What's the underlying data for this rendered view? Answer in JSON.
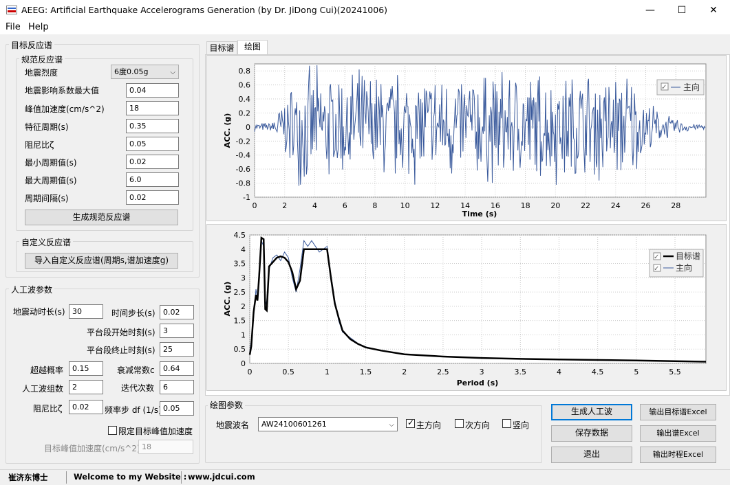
{
  "window": {
    "title": "AEEG: Artificial Earthquake Accelerograms Generation (by Dr. JiDong Cui)(20241006)",
    "min": "—",
    "max": "☐",
    "close": "✕"
  },
  "menu": [
    "File",
    "Help"
  ],
  "target": {
    "title": "目标反应谱",
    "code": {
      "title": "规范反应谱",
      "intensity_label": "地震烈度",
      "intensity_value": "6度0.05g",
      "amax_label": "地震影响系数最大值",
      "amax": "0.04",
      "pga_label": "峰值加速度(cm/s^2)",
      "pga": "18",
      "tg_label": "特征周期(s)",
      "tg": "0.35",
      "damp_label": "阻尼比ζ",
      "damp": "0.05",
      "tmin_label": "最小周期值(s)",
      "tmin": "0.02",
      "tmax_label": "最大周期值(s)",
      "tmax": "6.0",
      "dt_label": "周期间隔(s)",
      "dt": "0.02",
      "gen_button": "生成规范反应谱"
    },
    "custom": {
      "title": "自定义反应谱",
      "import_button": "导入自定义反应谱(周期s,谱加速度g)"
    }
  },
  "wave": {
    "title": "人工波参数",
    "dur_label": "地震动时长(s)",
    "dur": "30",
    "step_label": "时间步长(s)",
    "step": "0.02",
    "t1_label": "平台段开始时刻(s)",
    "t1": "3",
    "t2_label": "平台段终止时刻(s)",
    "t2": "25",
    "exceed_label": "超越概率",
    "exceed": "0.15",
    "decay_label": "衰减常数c",
    "decay": "0.64",
    "count_label": "人工波组数",
    "count": "2",
    "iter_label": "迭代次数",
    "iter": "6",
    "damp_label": "阻尼比ζ",
    "damp": "0.02",
    "df_label": "频率步 df (1/s)",
    "df": "0.05",
    "limit_label": "限定目标峰值加速度",
    "target_pga_label": "目标峰值加速度(cm/s^2)",
    "target_pga": "18"
  },
  "tabs": [
    "目标谱",
    "绘图"
  ],
  "chart1": {
    "legend": "主向",
    "ylabel": "ACC. (g)",
    "xlabel": "Time (s)",
    "yticks": [
      "0.8",
      "0.6",
      "0.4",
      "0.2",
      "0",
      "-0.2",
      "-0.4",
      "-0.6",
      "-0.8",
      "-1"
    ],
    "xticks": [
      "0",
      "2",
      "4",
      "6",
      "8",
      "10",
      "12",
      "14",
      "16",
      "18",
      "20",
      "22",
      "24",
      "26",
      "28"
    ]
  },
  "chart2": {
    "legend1": "目标谱",
    "legend2": "主向",
    "ylabel": "ACC. (g)",
    "xlabel": "Period (s)",
    "yticks": [
      "4.5",
      "4",
      "3.5",
      "3",
      "2.5",
      "2",
      "1.5",
      "1",
      "0.5",
      "0"
    ],
    "xticks": [
      "0",
      "0.5",
      "1",
      "1.5",
      "2",
      "2.5",
      "3",
      "3.5",
      "4",
      "4.5",
      "5",
      "5.5"
    ]
  },
  "plot": {
    "title": "绘图参数",
    "name_label": "地震波名",
    "name_value": "AW24100601261",
    "dir1": "主方向",
    "dir2": "次方向",
    "dir3": "竖向"
  },
  "actions": {
    "gen": "生成人工波",
    "save": "保存数据",
    "exit": "退出",
    "excel_target": "输出目标谱Excel",
    "excel_spec": "输出谱Excel",
    "excel_time": "输出时程Excel"
  },
  "status": {
    "author": "崔济东博士",
    "welcome": "Welcome to my Website :",
    "site": "www.jdcui.com"
  },
  "chart_data": [
    {
      "type": "line",
      "xlabel": "Time (s)",
      "ylabel": "ACC. (g)",
      "xlim": [
        0,
        30
      ],
      "ylim": [
        -1,
        0.9
      ],
      "series": [
        {
          "name": "主向",
          "note_envelope": [
            0,
            3,
            25,
            30
          ]
        }
      ]
    },
    {
      "type": "line",
      "xlabel": "Period (s)",
      "ylabel": "ACC. (g)",
      "xlim": [
        0,
        5.9
      ],
      "ylim": [
        0,
        4.5
      ],
      "x": [
        0.0,
        0.02,
        0.05,
        0.08,
        0.1,
        0.12,
        0.15,
        0.18,
        0.2,
        0.22,
        0.25,
        0.3,
        0.35,
        0.4,
        0.45,
        0.5,
        0.55,
        0.6,
        0.65,
        0.7,
        0.75,
        0.8,
        0.9,
        1.0,
        1.05,
        1.1,
        1.15,
        1.2,
        1.3,
        1.4,
        1.5,
        1.7,
        2.0,
        2.5,
        3.0,
        3.5,
        4.0,
        4.5,
        5.0,
        5.5,
        5.9
      ],
      "series": [
        {
          "name": "目标谱",
          "values": [
            0.3,
            0.6,
            1.8,
            2.4,
            2.2,
            3.0,
            4.4,
            4.35,
            1.9,
            1.85,
            3.4,
            3.55,
            3.7,
            3.75,
            3.7,
            3.55,
            3.2,
            2.6,
            2.9,
            4.0,
            4.0,
            4.0,
            4.0,
            4.0,
            3.0,
            2.1,
            1.6,
            1.15,
            0.85,
            0.68,
            0.56,
            0.45,
            0.32,
            0.24,
            0.19,
            0.16,
            0.14,
            0.12,
            0.1,
            0.08,
            0.06
          ]
        },
        {
          "name": "主向",
          "values": [
            0.4,
            0.8,
            1.6,
            2.6,
            2.3,
            3.2,
            4.3,
            4.1,
            2.0,
            2.2,
            3.3,
            3.7,
            3.8,
            3.6,
            3.9,
            3.7,
            3.0,
            2.5,
            3.3,
            4.3,
            4.1,
            4.3,
            3.9,
            4.1,
            3.1,
            2.2,
            1.5,
            1.1,
            0.9,
            0.7,
            0.58,
            0.44,
            0.31,
            0.23,
            0.18,
            0.15,
            0.13,
            0.11,
            0.095,
            0.075,
            0.055
          ]
        }
      ]
    }
  ]
}
